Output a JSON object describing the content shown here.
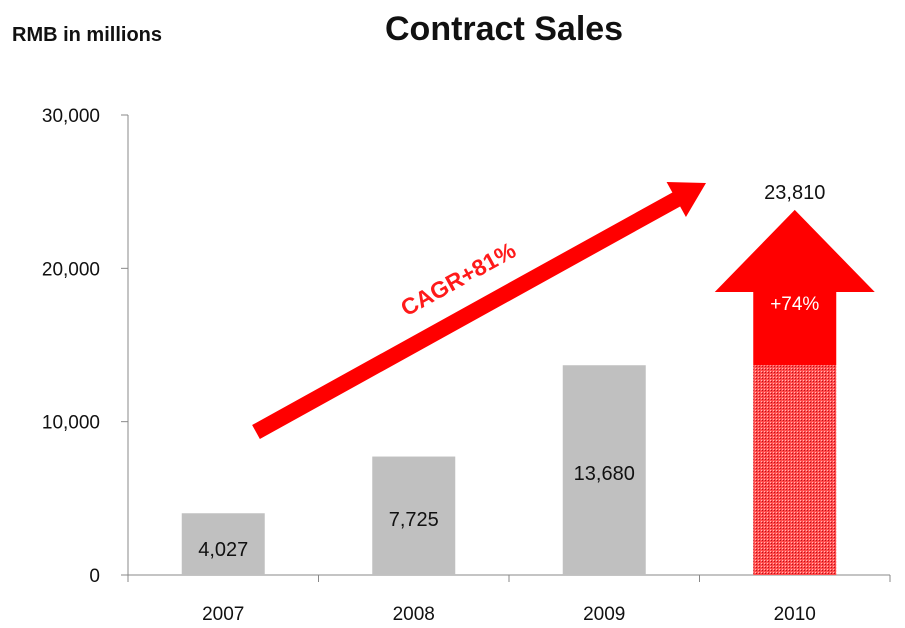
{
  "unit_label": "RMB in millions",
  "chart_data": {
    "type": "bar",
    "title": "Contract Sales",
    "ylabel": "RMB in millions",
    "categories": [
      "2007",
      "2008",
      "2009",
      "2010"
    ],
    "values": [
      4027,
      7725,
      13680,
      23810
    ],
    "value_labels": [
      "4,027",
      "7,725",
      "13,680",
      "23,810"
    ],
    "ylim": [
      0,
      30000
    ],
    "yticks": [
      0,
      10000,
      20000,
      30000
    ],
    "ytick_labels": [
      "0",
      "10,000",
      "20,000",
      "30,000"
    ],
    "grid": false,
    "annotations": {
      "cagr": "CAGR+81%",
      "growth": "+74%"
    },
    "colors": {
      "bar": "#c0c0c0",
      "highlight": "#ff0000",
      "hatch_bar": "#e8404a"
    }
  }
}
